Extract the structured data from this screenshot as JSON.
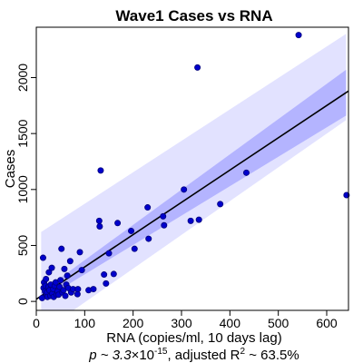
{
  "chart_data": {
    "type": "scatter",
    "title": "Wave1 Cases vs RNA",
    "xlabel": "RNA (copies/ml, 10 days lag)",
    "ylabel": "Cases",
    "xlim": [
      0,
      645
    ],
    "ylim": [
      -80,
      2450
    ],
    "x_ticks": [
      0,
      100,
      200,
      300,
      400,
      500,
      600
    ],
    "y_ticks": [
      0,
      500,
      1000,
      1500,
      2000
    ],
    "caption": {
      "p_prefix": "p ~ 3.3",
      "times": "×",
      "p_base": "10",
      "p_exp": "-15",
      "r2_prefix": ", adjusted R",
      "r2_sup": "2",
      "r2_value": " ~ 63.5%"
    },
    "colors": {
      "points": "#0000cc",
      "point_stroke": "#00007a",
      "prediction_band": "#e2e2ff",
      "confidence_band": "#b4b4ff",
      "fit_line": "#000000"
    },
    "fit_line": {
      "x": [
        0,
        645
      ],
      "y": [
        20,
        1880
      ]
    },
    "prediction_band": {
      "x": [
        10,
        640
      ],
      "lower": [
        -280,
        1620
      ],
      "upper": [
        620,
        2390
      ]
    },
    "confidence_band": {
      "x": [
        10,
        640
      ],
      "lower": [
        5,
        1660
      ],
      "upper": [
        85,
        2070
      ]
    },
    "points": [
      {
        "x": 12,
        "y": 30
      },
      {
        "x": 14,
        "y": 390
      },
      {
        "x": 15,
        "y": 120
      },
      {
        "x": 16,
        "y": 170
      },
      {
        "x": 18,
        "y": 90
      },
      {
        "x": 19,
        "y": 140
      },
      {
        "x": 20,
        "y": 200
      },
      {
        "x": 21,
        "y": 60
      },
      {
        "x": 22,
        "y": 80
      },
      {
        "x": 23,
        "y": 40
      },
      {
        "x": 25,
        "y": 130
      },
      {
        "x": 26,
        "y": 260
      },
      {
        "x": 27,
        "y": 100
      },
      {
        "x": 29,
        "y": 50
      },
      {
        "x": 30,
        "y": 150
      },
      {
        "x": 32,
        "y": 300
      },
      {
        "x": 33,
        "y": 70
      },
      {
        "x": 35,
        "y": 110
      },
      {
        "x": 36,
        "y": 40
      },
      {
        "x": 38,
        "y": 140
      },
      {
        "x": 40,
        "y": 170
      },
      {
        "x": 42,
        "y": 60
      },
      {
        "x": 44,
        "y": 90
      },
      {
        "x": 46,
        "y": 60
      },
      {
        "x": 48,
        "y": 130
      },
      {
        "x": 50,
        "y": 190
      },
      {
        "x": 52,
        "y": 470
      },
      {
        "x": 54,
        "y": 80
      },
      {
        "x": 56,
        "y": 100
      },
      {
        "x": 58,
        "y": 290
      },
      {
        "x": 60,
        "y": 50
      },
      {
        "x": 62,
        "y": 150
      },
      {
        "x": 64,
        "y": 230
      },
      {
        "x": 66,
        "y": 120
      },
      {
        "x": 70,
        "y": 360
      },
      {
        "x": 72,
        "y": 80
      },
      {
        "x": 76,
        "y": 110
      },
      {
        "x": 85,
        "y": 65
      },
      {
        "x": 86,
        "y": 110
      },
      {
        "x": 90,
        "y": 440
      },
      {
        "x": 94,
        "y": 280
      },
      {
        "x": 108,
        "y": 100
      },
      {
        "x": 118,
        "y": 110
      },
      {
        "x": 130,
        "y": 720
      },
      {
        "x": 131,
        "y": 670
      },
      {
        "x": 133,
        "y": 1170
      },
      {
        "x": 140,
        "y": 240
      },
      {
        "x": 144,
        "y": 160
      },
      {
        "x": 150,
        "y": 430
      },
      {
        "x": 160,
        "y": 245
      },
      {
        "x": 168,
        "y": 700
      },
      {
        "x": 196,
        "y": 630
      },
      {
        "x": 203,
        "y": 470
      },
      {
        "x": 230,
        "y": 840
      },
      {
        "x": 232,
        "y": 560
      },
      {
        "x": 262,
        "y": 760
      },
      {
        "x": 264,
        "y": 680
      },
      {
        "x": 305,
        "y": 1000
      },
      {
        "x": 319,
        "y": 720
      },
      {
        "x": 333,
        "y": 2090
      },
      {
        "x": 336,
        "y": 730
      },
      {
        "x": 380,
        "y": 870
      },
      {
        "x": 434,
        "y": 1150
      },
      {
        "x": 542,
        "y": 2380
      },
      {
        "x": 641,
        "y": 950
      }
    ]
  }
}
